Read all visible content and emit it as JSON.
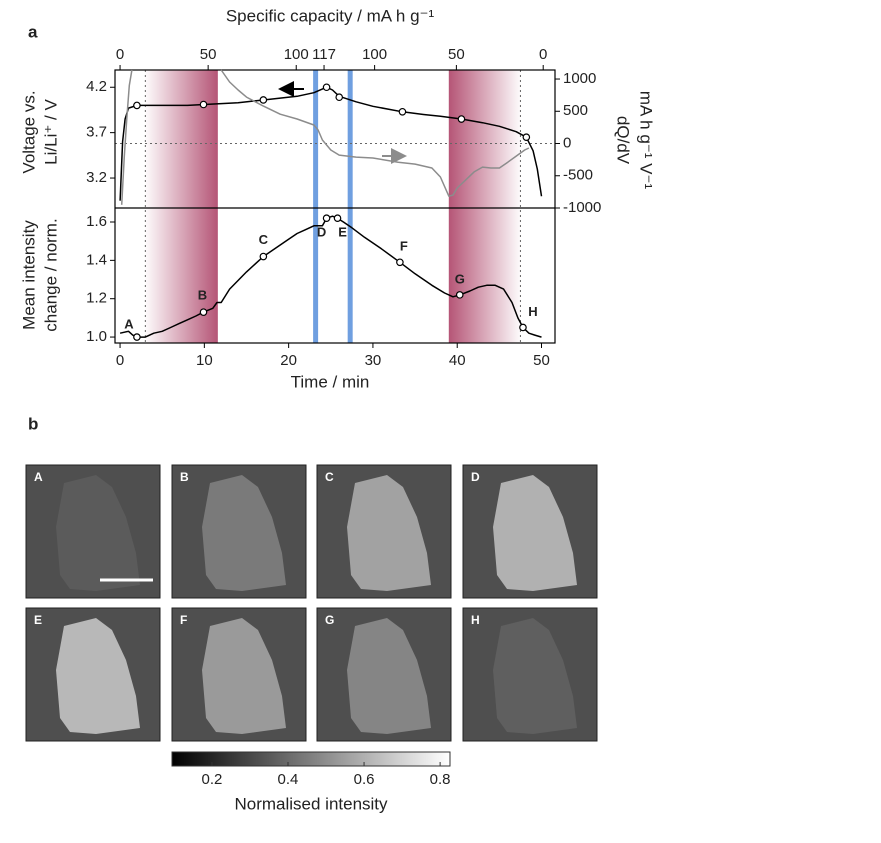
{
  "chart_data": [
    {
      "type": "line",
      "panel": "a",
      "x2label": "Specific capacity / mA h g⁻¹",
      "ylabel": [
        "Voltage vs.",
        "Li/Li⁺ / V"
      ],
      "y2label": [
        "dQ/dV",
        "mA h g⁻¹ V⁻¹"
      ],
      "xlim": [
        -0.6,
        51.6
      ],
      "x2ticks": [
        0,
        {
          "value": 10.45,
          "label": "50"
        },
        {
          "value": 20.9,
          "label": "100"
        },
        {
          "value": 24.2,
          "label": "117"
        },
        {
          "value": 30.2,
          "label": "100"
        },
        {
          "value": 39.9,
          "label": "50"
        },
        {
          "value": 50.2,
          "label": "0"
        }
      ],
      "ylim": [
        2.87,
        4.39
      ],
      "yticks": [
        3.2,
        3.7,
        4.2
      ],
      "y2lim": [
        -1000,
        1140
      ],
      "y2ticks": [
        -1000,
        -500,
        0,
        500,
        1000
      ],
      "shaded_regions": [
        [
          3,
          11.6
        ],
        [
          39,
          47.5
        ]
      ],
      "shade_color": "#a8375e",
      "highlights": [
        23.2,
        27.3
      ],
      "highlight_color": "#6f9fe0",
      "reference_lines": [
        3,
        47.5
      ],
      "y2_reference": 0,
      "series": [
        {
          "color": "#000000",
          "mode": "line",
          "x": [
            0,
            0.3,
            0.6,
            1,
            2,
            4,
            6,
            8,
            10,
            12,
            14,
            16,
            17,
            19,
            21,
            23,
            24.5,
            25.2,
            26,
            28,
            30,
            33.5,
            36,
            38,
            40.5,
            43,
            45,
            47,
            48.2,
            49,
            49.5,
            50
          ],
          "values": [
            2.95,
            3.6,
            3.85,
            3.97,
            4.0,
            4.0,
            4.0,
            4.0,
            4.01,
            4.02,
            4.03,
            4.05,
            4.06,
            4.08,
            4.1,
            4.14,
            4.2,
            4.17,
            4.1,
            4.04,
            3.99,
            3.93,
            3.9,
            3.88,
            3.85,
            3.81,
            3.77,
            3.71,
            3.65,
            3.5,
            3.3,
            3.0
          ]
        },
        {
          "color": "#000000",
          "mode": "markers",
          "x": [
            2,
            9.9,
            17,
            24.5,
            26,
            33.5,
            40.5,
            48.2
          ],
          "values": [
            4.0,
            4.01,
            4.06,
            4.2,
            4.09,
            3.93,
            3.85,
            3.65
          ]
        },
        {
          "color": "#8c8c8c",
          "mode": "line",
          "axis": "y2",
          "x": [
            0.2,
            0.5,
            0.8,
            1.1,
            1.4,
            6,
            12,
            13,
            14,
            15,
            17,
            19,
            21,
            22,
            23,
            23.5,
            24,
            25,
            26,
            28,
            30,
            33,
            35,
            37,
            38,
            39,
            39.5,
            40,
            41,
            42,
            43,
            44,
            45,
            46,
            47,
            48,
            48.5
          ],
          "values": [
            -950,
            -200,
            390,
            900,
            1140,
            null,
            1140,
            954,
            830,
            720,
            580,
            455,
            380,
            333,
            287,
            210,
            55,
            -100,
            -180,
            -210,
            -225,
            -290,
            -320,
            -380,
            -520,
            -815,
            -800,
            -690,
            -565,
            -440,
            -365,
            -380,
            -380,
            -290,
            -195,
            -100,
            -70
          ]
        }
      ]
    },
    {
      "type": "line",
      "xlabel": "Time / min",
      "ylabel": [
        "Mean intensity",
        "change / norm."
      ],
      "xlim": [
        -0.6,
        51.6
      ],
      "xticks": [
        0,
        10,
        20,
        30,
        40,
        50
      ],
      "ylim": [
        0.969,
        1.673
      ],
      "yticks": [
        {
          "value": 1,
          "label": "1.0"
        },
        1.2,
        1.4,
        1.6
      ],
      "series": [
        {
          "color": "#000000",
          "mode": "line",
          "x": [
            0,
            1,
            1.5,
            2,
            3,
            4,
            5,
            6,
            7,
            8,
            9,
            9.9,
            11,
            11.5,
            12,
            13,
            15,
            17,
            19,
            20,
            21,
            22,
            23,
            24,
            24.5,
            25.2,
            25.8,
            26.5,
            27.5,
            29,
            31,
            33.2,
            35,
            37,
            38.5,
            39.5,
            40.3,
            41.5,
            42.5,
            43.5,
            44.5,
            45.5,
            46.5,
            47.2,
            47.8,
            48.5,
            49.2,
            50
          ],
          "values": [
            1.02,
            1.03,
            1.01,
            1.0,
            1.0,
            1.02,
            1.03,
            1.05,
            1.07,
            1.09,
            1.11,
            1.13,
            1.15,
            1.18,
            1.18,
            1.25,
            1.34,
            1.42,
            1.48,
            1.51,
            1.54,
            1.56,
            1.58,
            1.58,
            1.62,
            1.63,
            1.62,
            1.6,
            1.57,
            1.52,
            1.46,
            1.39,
            1.33,
            1.27,
            1.23,
            1.21,
            1.22,
            1.24,
            1.26,
            1.27,
            1.27,
            1.25,
            1.18,
            1.1,
            1.05,
            1.02,
            1.01,
            1.0
          ]
        },
        {
          "color": "#000000",
          "mode": "markers",
          "x": [
            2,
            9.9,
            17,
            24.5,
            25.8,
            33.2,
            40.3,
            47.8
          ],
          "values": [
            1.0,
            1.13,
            1.42,
            1.62,
            1.62,
            1.39,
            1.22,
            1.05
          ],
          "labels": [
            "A",
            "B",
            "C",
            "D",
            "E",
            "F",
            "G",
            "H"
          ]
        }
      ]
    },
    {
      "type": "image-grid",
      "panel": "b",
      "images": [
        {
          "label": "A",
          "color": "#5c5c5c"
        },
        {
          "label": "B",
          "color": "#7c7c7c"
        },
        {
          "label": "C",
          "color": "#a6a6a6"
        },
        {
          "label": "D",
          "color": "#b6b6b6"
        },
        {
          "label": "E",
          "color": "#bebebe"
        },
        {
          "label": "F",
          "color": "#9e9e9e"
        },
        {
          "label": "G",
          "color": "#888888"
        },
        {
          "label": "H",
          "color": "#606060"
        }
      ],
      "colorbar": {
        "label": "Normalised intensity",
        "lim": [
          0.095,
          0.826
        ],
        "ticks": [
          0.2,
          0.4,
          0.6,
          0.8
        ],
        "colors": [
          "#000000",
          "#ffffff"
        ]
      }
    }
  ]
}
